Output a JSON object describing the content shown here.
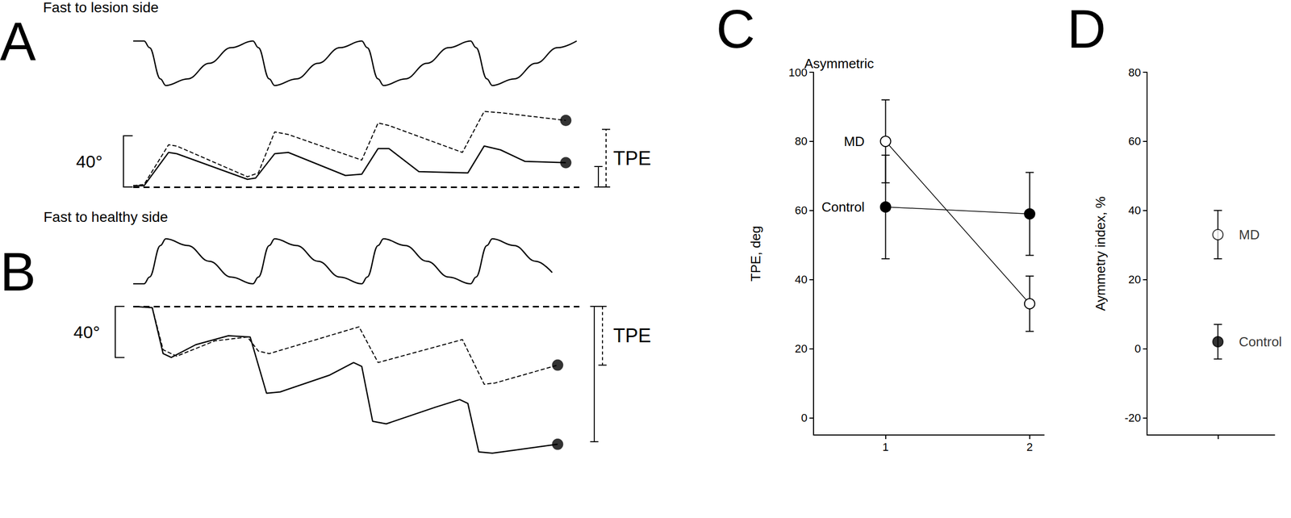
{
  "chart_data": [
    {
      "panel": "A",
      "type": "line",
      "title": "Fast to lesion side",
      "tick_labels": false,
      "xlim": [
        0,
        16.4
      ],
      "ylim": [
        0,
        60
      ],
      "baseline": 0,
      "stimulus": {
        "ylim": [
          -1,
          1
        ],
        "x": [
          0,
          0.4,
          0.6,
          1.0,
          1.2,
          2.0,
          2.8,
          3.6,
          4.4,
          4.6,
          5.0,
          5.2,
          6.0,
          6.8,
          7.6,
          8.4,
          8.6,
          9.0,
          9.2,
          10.0,
          10.8,
          11.6,
          12.4,
          12.6,
          13.0,
          13.2,
          14.0,
          14.8,
          15.6,
          16.3
        ],
        "values": [
          1,
          1,
          0.7,
          -0.7,
          -1,
          -0.7,
          0,
          0.7,
          1,
          0.7,
          -0.7,
          -1,
          -0.7,
          0,
          0.7,
          1,
          0.7,
          -0.7,
          -1,
          -0.7,
          0,
          0.7,
          1,
          0.7,
          -0.7,
          -1,
          -0.7,
          0,
          0.7,
          1
        ]
      },
      "series": [
        {
          "line_style": "solid",
          "marker": "circle",
          "color": "#000000",
          "x": [
            0,
            0.4,
            1.3,
            1.6,
            4.2,
            4.5,
            5.2,
            5.7,
            7.8,
            8.4,
            9.0,
            9.4,
            10.5,
            12.3,
            12.9,
            13.5,
            14.4,
            15.9
          ],
          "values": [
            1,
            1,
            27,
            26,
            6,
            7,
            26,
            27,
            9,
            10,
            30,
            30,
            12,
            11,
            32,
            29,
            20,
            19
          ]
        },
        {
          "line_style": "dashed",
          "marker": "circle",
          "color": "#000000",
          "x": [
            0,
            0.4,
            1.3,
            1.6,
            4.2,
            4.6,
            5.2,
            5.7,
            8.4,
            9.0,
            9.4,
            12.1,
            12.9,
            13.5,
            15.9
          ],
          "values": [
            1,
            2,
            33,
            32,
            8,
            11,
            43,
            41,
            21,
            50,
            48,
            27,
            59,
            58,
            52
          ]
        }
      ],
      "scale_bar": {
        "value": 40,
        "label": "40°"
      },
      "tpe": {
        "label": "TPE",
        "solid": 16,
        "dashed": 45
      }
    },
    {
      "panel": "B",
      "type": "line",
      "title": "Fast to healthy side",
      "tick_labels": false,
      "xlim": [
        0,
        16.4
      ],
      "ylim": [
        -120,
        0
      ],
      "baseline": 0,
      "stimulus": {
        "ylim": [
          -1,
          1
        ],
        "x": [
          0,
          0.4,
          0.6,
          1.0,
          1.2,
          2.0,
          2.8,
          3.6,
          4.4,
          4.6,
          5.0,
          5.2,
          6.0,
          6.8,
          7.6,
          8.4,
          8.6,
          9.0,
          9.2,
          10.0,
          10.8,
          11.6,
          12.4,
          12.6,
          13.0,
          13.2,
          14.0,
          14.8,
          15.4
        ],
        "values": [
          -1,
          -1,
          -0.7,
          0.7,
          1,
          0.7,
          0,
          -0.7,
          -1,
          -0.7,
          0.7,
          1,
          0.7,
          0,
          -0.7,
          -1,
          -0.7,
          0.7,
          1,
          0.7,
          0,
          -0.7,
          -1,
          -0.7,
          0.7,
          1,
          0.7,
          0,
          -0.5
        ]
      },
      "series": [
        {
          "line_style": "solid",
          "marker": "circle",
          "color": "#000000",
          "x": [
            0,
            0.7,
            1.1,
            1.4,
            2.3,
            3.5,
            4.3,
            4.9,
            5.4,
            7.2,
            8.1,
            8.4,
            8.8,
            9.3,
            11.1,
            12.0,
            12.3,
            12.7,
            13.2,
            15.6
          ],
          "values": [
            0,
            -1,
            -37,
            -40,
            -30,
            -23,
            -24,
            -68,
            -67,
            -54,
            -44,
            -47,
            -90,
            -92,
            -79,
            -73,
            -76,
            -114,
            -115,
            -108
          ]
        },
        {
          "line_style": "dashed",
          "marker": "circle",
          "color": "#000000",
          "x": [
            0,
            0.7,
            1.1,
            1.6,
            3.0,
            4.2,
            4.6,
            5.0,
            8.3,
            9.0,
            12.1,
            12.9,
            13.3,
            15.6
          ],
          "values": [
            0,
            -1,
            -34,
            -39,
            -27,
            -24,
            -35,
            -37,
            -16,
            -44,
            -26,
            -61,
            -60,
            -46
          ]
        }
      ],
      "scale_bar": {
        "value": 40,
        "label": "40°"
      },
      "tpe": {
        "label": "TPE",
        "solid": -106,
        "dashed": -46
      }
    },
    {
      "panel": "C",
      "type": "line",
      "title": "Asymmetric",
      "y_label": "TPE, deg",
      "xlim": [
        0.5,
        2.1
      ],
      "xticks": [
        1,
        2
      ],
      "ylim": [
        -5,
        100
      ],
      "yticks": [
        0,
        20,
        40,
        60,
        80,
        100
      ],
      "series": [
        {
          "name": "MD",
          "color": "#000000",
          "marker": "open_circle",
          "x": [
            1,
            2
          ],
          "values": [
            80,
            33
          ],
          "errors": [
            12,
            8
          ]
        },
        {
          "name": "Control",
          "color": "#000000",
          "marker": "filled_circle",
          "x": [
            1,
            2
          ],
          "values": [
            61,
            59
          ],
          "errors": [
            15,
            12
          ]
        }
      ]
    },
    {
      "panel": "D",
      "type": "scatter",
      "y_label": "Aymmetry index, %",
      "tick_labels": "y",
      "xlim": [
        0,
        1.8
      ],
      "xticks": [
        1
      ],
      "ylim": [
        -25,
        80
      ],
      "yticks": [
        -20,
        0,
        20,
        40,
        60,
        80
      ],
      "series": [
        {
          "name": "MD",
          "color": "#000000",
          "marker": "open_circle",
          "x": [
            1
          ],
          "values": [
            33
          ],
          "errors": [
            7
          ]
        },
        {
          "name": "Control",
          "color": "#000000",
          "marker": "filled_circle",
          "x": [
            1
          ],
          "values": [
            2
          ],
          "errors": [
            5
          ]
        }
      ]
    }
  ]
}
